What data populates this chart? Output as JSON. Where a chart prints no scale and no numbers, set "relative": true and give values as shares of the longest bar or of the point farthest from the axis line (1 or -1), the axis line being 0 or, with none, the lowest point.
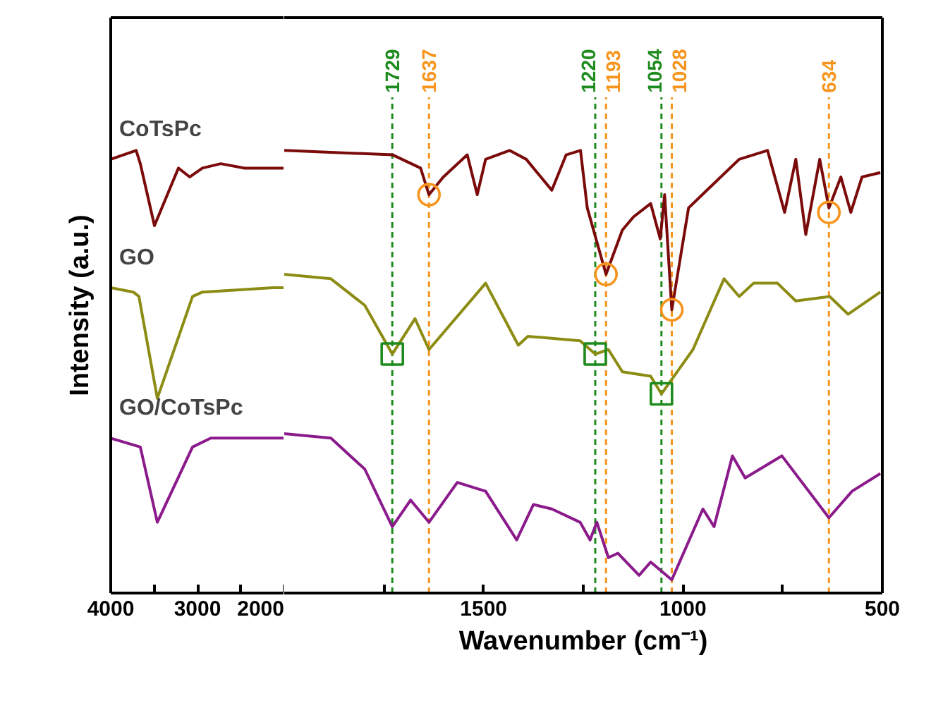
{
  "chart_data": [
    {
      "type": "line",
      "relative": true,
      "ylabel": "Intensity (a.u.)",
      "xlim": [
        4000,
        2000
      ],
      "xticks": [
        4000,
        {
          "value": 3500,
          "label": null
        },
        3000,
        {
          "value": 2500,
          "label": null
        },
        2000
      ],
      "grid": false,
      "series": [
        {
          "name": "CoTsPc",
          "color": "#7b0a0a",
          "x": [
            4000,
            3707,
            3659,
            3496,
            3220,
            3089,
            2943,
            2732,
            2455,
            2130,
            2000
          ],
          "values": [
            0.98,
            1.0,
            0.97,
            0.83,
            0.96,
            0.94,
            0.96,
            0.97,
            0.96,
            0.96,
            0.96
          ]
        },
        {
          "name": "GO",
          "color": "#8c8c14",
          "x": [
            4000,
            3740,
            3675,
            3463,
            3057,
            2943,
            2130,
            2000
          ],
          "values": [
            0.69,
            0.68,
            0.67,
            0.44,
            0.67,
            0.68,
            0.69,
            0.69
          ]
        },
        {
          "name": "GO/CoTsPc",
          "color": "#8b1a8b",
          "x": [
            4000,
            3659,
            3463,
            3057,
            2846,
            2130,
            2000
          ],
          "values": [
            0.35,
            0.33,
            0.16,
            0.33,
            0.35,
            0.35,
            0.35
          ]
        }
      ]
    },
    {
      "type": "line",
      "relative": true,
      "xlabel": "Wavenumber (cm⁻¹)",
      "xlim": [
        2000,
        500
      ],
      "xticks": [
        {
          "value": 1750,
          "label": null
        },
        1500,
        {
          "value": 1250,
          "label": null
        },
        1000,
        {
          "value": 750,
          "label": null
        },
        500
      ],
      "grid": false,
      "series": [
        {
          "color": "#7b0a0a",
          "x": [
            2000,
            1728,
            1658,
            1637,
            1601,
            1541,
            1516,
            1495,
            1435,
            1393,
            1329,
            1293,
            1257,
            1240,
            1193,
            1152,
            1124,
            1081,
            1057,
            1046,
            1028,
            986,
            940,
            859,
            788,
            745,
            717,
            692,
            657,
            634,
            604,
            579,
            551,
            505
          ],
          "values": [
            1.0,
            0.99,
            0.96,
            0.9,
            0.94,
            0.99,
            0.9,
            0.98,
            1.0,
            0.98,
            0.91,
            0.99,
            1.0,
            0.87,
            0.72,
            0.82,
            0.85,
            0.88,
            0.8,
            0.9,
            0.64,
            0.87,
            0.91,
            0.98,
            1.0,
            0.86,
            0.98,
            0.81,
            0.98,
            0.87,
            0.94,
            0.86,
            0.94,
            0.95
          ]
        },
        {
          "color": "#8c8c14",
          "x": [
            2000,
            1883,
            1798,
            1729,
            1672,
            1637,
            1495,
            1413,
            1389,
            1258,
            1220,
            1187,
            1152,
            1081,
            1054,
            975,
            897,
            859,
            823,
            763,
            717,
            632,
            586,
            505
          ],
          "values": [
            0.72,
            0.71,
            0.65,
            0.54,
            0.62,
            0.55,
            0.7,
            0.56,
            0.58,
            0.57,
            0.54,
            0.55,
            0.5,
            0.49,
            0.45,
            0.55,
            0.71,
            0.67,
            0.7,
            0.7,
            0.66,
            0.67,
            0.63,
            0.68
          ]
        },
        {
          "color": "#8b1a8b",
          "x": [
            2000,
            1883,
            1798,
            1729,
            1683,
            1637,
            1566,
            1495,
            1417,
            1375,
            1329,
            1258,
            1233,
            1216,
            1187,
            1163,
            1110,
            1081,
            1028,
            950,
            922,
            876,
            844,
            752,
            634,
            576,
            505
          ],
          "values": [
            0.36,
            0.35,
            0.28,
            0.15,
            0.21,
            0.16,
            0.25,
            0.23,
            0.12,
            0.2,
            0.19,
            0.16,
            0.12,
            0.16,
            0.08,
            0.09,
            0.04,
            0.07,
            0.03,
            0.19,
            0.15,
            0.31,
            0.26,
            0.31,
            0.17,
            0.23,
            0.27
          ]
        },
        {
          "type": "scatter",
          "marker": "circle",
          "color": "#f7941d",
          "x": [
            1637,
            1193,
            1028,
            634
          ],
          "values": [
            0.9,
            0.72,
            0.64,
            0.86
          ]
        },
        {
          "type": "scatter",
          "marker": "square",
          "color": "#1e8b1e",
          "x": [
            1729,
            1220,
            1054
          ],
          "values": [
            0.54,
            0.54,
            0.45
          ]
        }
      ],
      "ref_lines": [
        {
          "axis": "x",
          "value": 1729,
          "label": "1729",
          "color": "#1e8b1e",
          "line_style": "dashed"
        },
        {
          "axis": "x",
          "value": 1637,
          "label": "1637",
          "color": "#f7941d",
          "line_style": "dashed"
        },
        {
          "axis": "x",
          "value": 1220,
          "label": "1220",
          "color": "#1e8b1e",
          "line_style": "dashed"
        },
        {
          "axis": "x",
          "value": 1193,
          "label": "1193",
          "color": "#f7941d",
          "line_style": "dashed"
        },
        {
          "axis": "x",
          "value": 1054,
          "label": "1054",
          "color": "#1e8b1e",
          "line_style": "dashed"
        },
        {
          "axis": "x",
          "value": 1028,
          "label": "1028",
          "color": "#f7941d",
          "line_style": "dashed"
        },
        {
          "axis": "x",
          "value": 634,
          "label": "634",
          "color": "#f7941d",
          "line_style": "dashed"
        }
      ]
    }
  ]
}
